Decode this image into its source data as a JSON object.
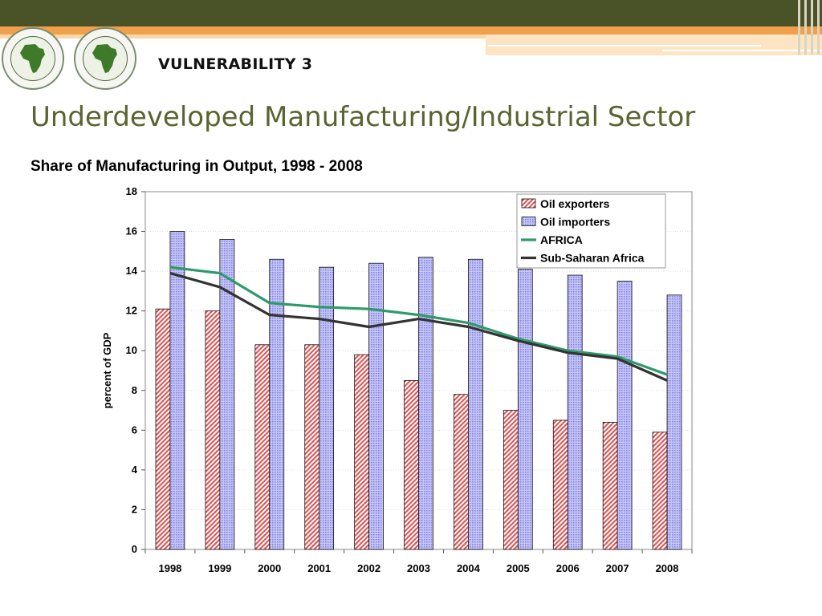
{
  "slide": {
    "heading": "VULNERABILITY 3",
    "title": "Underdeveloped Manufacturing/Industrial Sector",
    "subtitle": "Share of Manufacturing in Output, 1998 -  2008"
  },
  "theme": {
    "top_bar_color": "#4a5228",
    "accent_orange": "#f0a04a",
    "title_color": "#5a6430"
  },
  "chart_data": {
    "type": "bar",
    "categories": [
      "1998",
      "1999",
      "2000",
      "2001",
      "2002",
      "2003",
      "2004",
      "2005",
      "2006",
      "2007",
      "2008"
    ],
    "ylabel": "percent of GDP",
    "xlabel": "",
    "ylim": [
      0,
      18
    ],
    "yticks": [
      0,
      2,
      4,
      6,
      8,
      10,
      12,
      14,
      16,
      18
    ],
    "grid": true,
    "legend_position": "top-right",
    "series": [
      {
        "name": "Oil exporters",
        "kind": "bar",
        "color": "#e05050",
        "pattern": "diagonal-hatch",
        "values": [
          12.1,
          12.0,
          10.3,
          10.3,
          9.8,
          8.5,
          7.8,
          7.0,
          6.5,
          6.4,
          5.9
        ]
      },
      {
        "name": "Oil importers",
        "kind": "bar",
        "color": "#9999ee",
        "pattern": "dots",
        "values": [
          16.0,
          15.6,
          14.6,
          14.2,
          14.4,
          14.7,
          14.6,
          14.1,
          13.8,
          13.5,
          12.8
        ]
      },
      {
        "name": "AFRICA",
        "kind": "line",
        "color": "#2e9a6a",
        "values": [
          14.2,
          13.9,
          12.4,
          12.2,
          12.1,
          11.8,
          11.4,
          10.6,
          10.0,
          9.7,
          8.8
        ]
      },
      {
        "name": "Sub-Saharan Africa",
        "kind": "line",
        "color": "#333333",
        "values": [
          13.9,
          13.2,
          11.8,
          11.6,
          11.2,
          11.6,
          11.2,
          10.5,
          9.9,
          9.6,
          8.5
        ]
      }
    ]
  }
}
